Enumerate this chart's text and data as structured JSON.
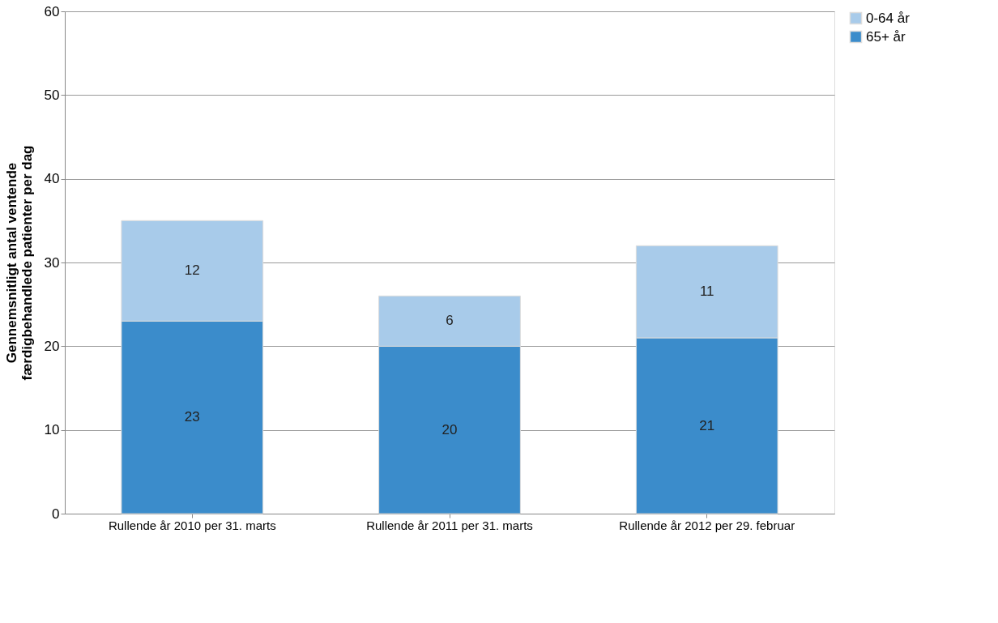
{
  "chart_data": {
    "type": "bar",
    "stacked": true,
    "ylabel": "Gennemsnitligt antal ventende færdigbehandlede patienter per dag",
    "categories": [
      "Rullende år 2010 per 31. marts",
      "Rullende år 2011 per 31. marts",
      "Rullende år 2012 per 29. februar"
    ],
    "series": [
      {
        "name": "65+ år",
        "color": "#3b8ccb",
        "values": [
          23,
          20,
          21
        ]
      },
      {
        "name": "0-64 år",
        "color": "#a8cbea",
        "values": [
          12,
          6,
          11
        ]
      }
    ],
    "ylim": [
      0,
      60
    ],
    "yticks": [
      0,
      10,
      20,
      30,
      40,
      50,
      60
    ],
    "grid": "y",
    "legend": "right",
    "data_labels": true
  }
}
